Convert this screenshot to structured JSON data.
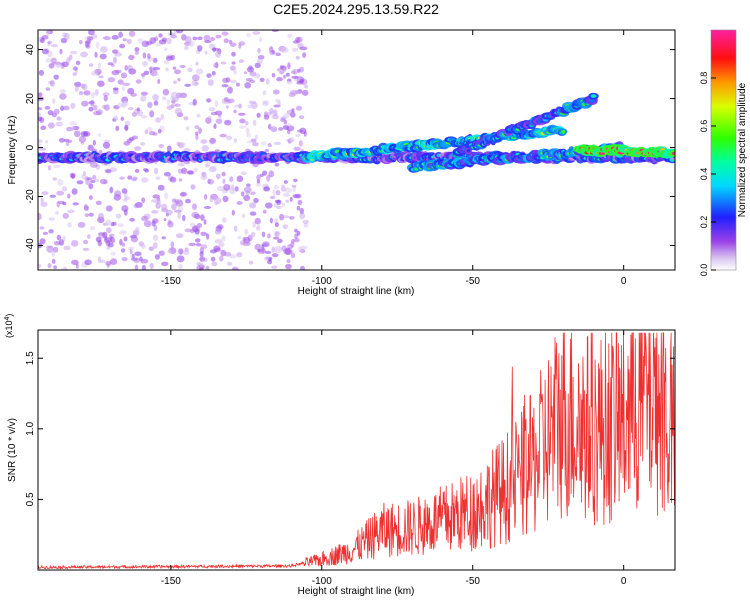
{
  "title": "C2E5.2024.295.13.59.R22",
  "chart_data": [
    {
      "type": "heatmap",
      "xlabel": "Height of straight line (km)",
      "ylabel": "Frequency (Hz)",
      "xlim": [
        -194,
        17
      ],
      "ylim": [
        -50,
        48
      ],
      "xticks": [
        -150,
        -100,
        -50,
        0
      ],
      "yticks": [
        -40,
        -20,
        0,
        20,
        40
      ],
      "colorbar": {
        "label": "Normalized spectral amplitude",
        "range": [
          0,
          1
        ],
        "ticks": [
          0.0,
          0.2,
          0.4,
          0.6,
          0.8
        ],
        "colormap": "rainbow (purple-blue-cyan-green-yellow-orange-red-magenta)"
      },
      "features": [
        {
          "name": "main band",
          "x": [
            -194,
            17
          ],
          "y": [
            -4,
            -4
          ],
          "amplitude": 0.3
        },
        {
          "name": "rising branch",
          "x": [
            -105,
            -20
          ],
          "y": [
            -4,
            7
          ],
          "amplitude": 0.55
        },
        {
          "name": "upper branch",
          "x": [
            -55,
            -10
          ],
          "y": [
            -2,
            20
          ],
          "amplitude": 0.4
        },
        {
          "name": "lower branch",
          "x": [
            -70,
            0
          ],
          "y": [
            -8,
            0
          ],
          "amplitude": 0.45
        },
        {
          "name": "peak segment",
          "x": [
            -15,
            17
          ],
          "y": [
            -1,
            -2
          ],
          "amplitude": 0.9
        }
      ],
      "noise_region": {
        "x": [
          -194,
          -105
        ],
        "y": [
          -50,
          48
        ]
      }
    },
    {
      "type": "line",
      "xlabel": "Height of straight line (km)",
      "ylabel": "SNR (10 * v/v)",
      "multiplier_label": "(x10",
      "multiplier_exp": "4",
      "xlim": [
        -194,
        17
      ],
      "ylim": [
        0,
        1.7
      ],
      "xticks": [
        -150,
        -100,
        -50,
        0
      ],
      "yticks": [
        0.5,
        1.0,
        1.5
      ],
      "line_color": "#ee3030",
      "envelope": {
        "x": [
          -194,
          -110,
          -100,
          -90,
          -80,
          -70,
          -60,
          -50,
          -40,
          -30,
          -20,
          -10,
          0,
          10,
          17
        ],
        "y": [
          0.02,
          0.03,
          0.08,
          0.15,
          0.3,
          0.32,
          0.38,
          0.45,
          0.6,
          0.8,
          1.2,
          1.05,
          1.15,
          1.4,
          1.0
        ]
      }
    }
  ]
}
